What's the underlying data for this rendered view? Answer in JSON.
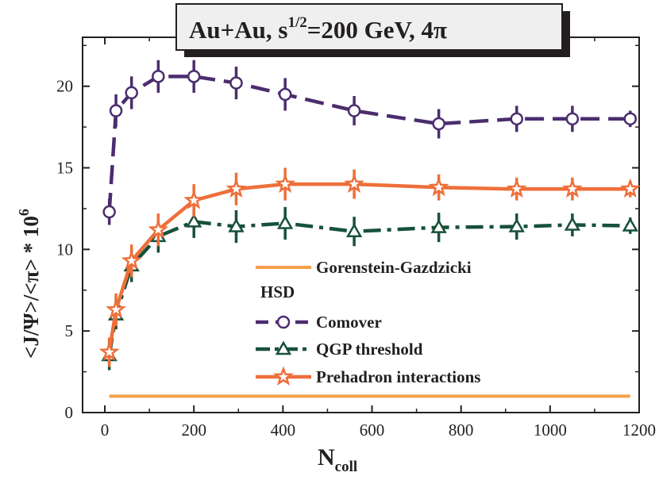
{
  "chart_data": {
    "type": "line",
    "title": "Au+Au, s",
    "title_sup": "1/2",
    "title_rest": "=200 GeV, 4π",
    "xlabel": "N",
    "xlabel_sub": "coll",
    "ylabel": "<J/Ψ>/<π> * 10",
    "ylabel_sup": "6",
    "xlim": [
      -50,
      1200
    ],
    "ylim": [
      0,
      23
    ],
    "x_ticks": [
      0,
      200,
      400,
      600,
      800,
      1000,
      1200
    ],
    "y_ticks": [
      0,
      5,
      10,
      15,
      20
    ],
    "grid": false,
    "legend_position": "bottom-center",
    "legend_header": "HSD",
    "series": [
      {
        "name": "Gorenstein-Gazdzicki",
        "color": "#f5a04a",
        "style": "solid",
        "marker": "none",
        "x": [
          10,
          1180
        ],
        "y": [
          1.0,
          1.0
        ]
      },
      {
        "name": "Comover",
        "color": "#4b2d6e",
        "style": "dashed",
        "marker": "circle",
        "x": [
          10,
          25,
          60,
          120,
          200,
          295,
          405,
          560,
          750,
          925,
          1050,
          1180
        ],
        "y": [
          12.3,
          18.5,
          19.6,
          20.6,
          20.6,
          20.2,
          19.5,
          18.5,
          17.7,
          18.0,
          18.0,
          18.0
        ],
        "err": [
          0.8,
          1.0,
          1.0,
          1.0,
          1.0,
          1.0,
          1.0,
          0.9,
          0.9,
          0.8,
          0.8,
          0.5
        ]
      },
      {
        "name": "QGP threshold",
        "color": "#17513a",
        "style": "dashdot",
        "marker": "triangle",
        "x": [
          10,
          25,
          60,
          120,
          200,
          295,
          405,
          560,
          750,
          925,
          1050,
          1180
        ],
        "y": [
          3.5,
          6.0,
          9.0,
          10.8,
          11.7,
          11.4,
          11.6,
          11.1,
          11.35,
          11.4,
          11.5,
          11.45
        ],
        "err": [
          0.9,
          0.9,
          1.0,
          1.0,
          1.0,
          1.0,
          1.0,
          0.9,
          0.9,
          0.8,
          0.7,
          0.5
        ]
      },
      {
        "name": "Prehadron interactions",
        "color": "#ee6f3a",
        "style": "solid",
        "marker": "star",
        "x": [
          10,
          25,
          60,
          120,
          200,
          295,
          405,
          560,
          750,
          925,
          1050,
          1180
        ],
        "y": [
          3.7,
          6.3,
          9.3,
          11.2,
          13.0,
          13.7,
          14.0,
          14.0,
          13.8,
          13.7,
          13.7,
          13.7
        ],
        "err": [
          0.9,
          1.0,
          1.0,
          1.0,
          1.0,
          1.0,
          1.0,
          0.9,
          0.8,
          0.7,
          0.7,
          0.5
        ]
      }
    ]
  }
}
